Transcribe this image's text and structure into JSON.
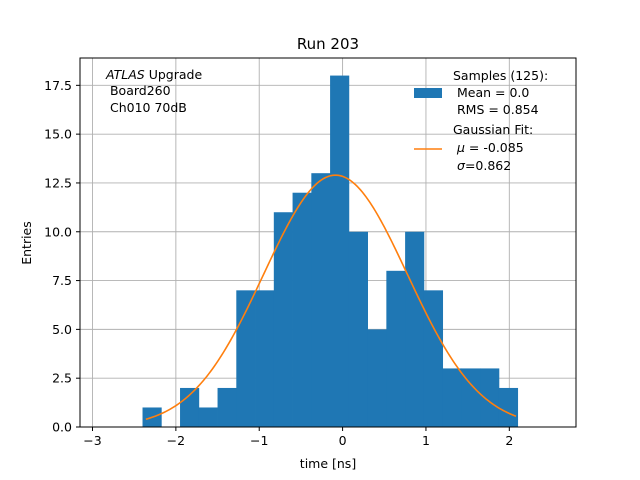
{
  "chart_data": {
    "type": "bar",
    "title": "Run 203",
    "xlabel": "time [ns]",
    "ylabel": "Entries",
    "xlim": [
      -3.15,
      2.8
    ],
    "ylim": [
      0,
      18.9
    ],
    "grid": true,
    "x_ticks": [
      -3,
      -2,
      -1,
      0,
      1,
      2
    ],
    "x_tick_labels": [
      "−3",
      "−2",
      "−1",
      "0",
      "1",
      "2"
    ],
    "y_ticks": [
      0,
      2.5,
      5,
      7.5,
      10,
      12.5,
      15,
      17.5
    ],
    "y_tick_labels": [
      "0.0",
      "2.5",
      "5.0",
      "7.5",
      "10.0",
      "12.5",
      "15.0",
      "17.5"
    ],
    "bin_width": 0.225,
    "histogram": {
      "name": "Samples (125):",
      "color": "#1f77b4",
      "bin_starts": [
        -2.4,
        -2.175,
        -1.95,
        -1.725,
        -1.5,
        -1.275,
        -1.05,
        -0.825,
        -0.6,
        -0.375,
        -0.15,
        0.075,
        0.3,
        0.525,
        0.75,
        0.975,
        1.2,
        1.425,
        1.65,
        1.875
      ],
      "counts": [
        1,
        0,
        2,
        1,
        2,
        7,
        7,
        11,
        12,
        13,
        18,
        10,
        5,
        8,
        10,
        7,
        3,
        3,
        3,
        2
      ]
    },
    "gaussian_fit": {
      "name": "Gaussian Fit:",
      "color": "#ff7f0e",
      "mu": -0.085,
      "sigma": 0.862,
      "amplitude": 12.9,
      "x_range": [
        -2.36,
        2.08
      ]
    },
    "legend": {
      "placement": "top-right",
      "samples_label": "Samples (125):",
      "samples_mean": " Mean = 0.0",
      "samples_rms": " RMS = 0.854",
      "fit_label": "Gaussian Fit:",
      "fit_mu": " = -0.085",
      "fit_sigma": "=0.862",
      "mu_symbol": "μ",
      "sigma_symbol": "σ"
    },
    "annotation": {
      "experiment": "ATLAS",
      "experiment_suffix": " Upgrade",
      "board": " Board260",
      "channel": " Ch010 70dB"
    }
  }
}
